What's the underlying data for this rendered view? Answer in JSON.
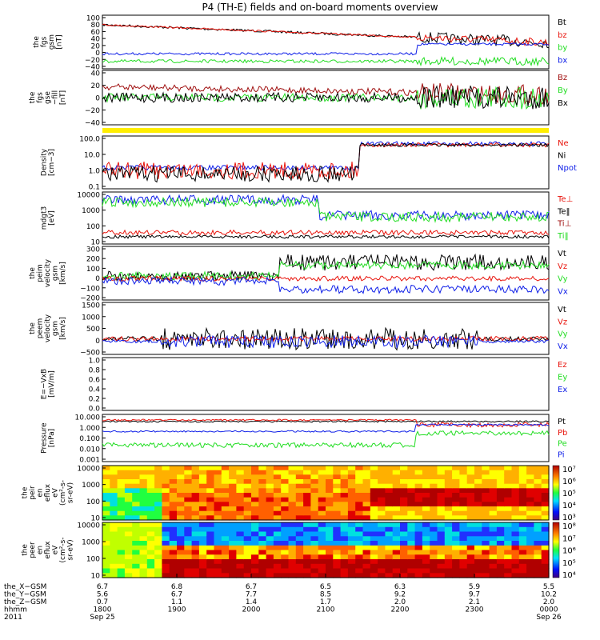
{
  "title": "P4 (TH-E) fields and on-board moments overview",
  "year": "2011",
  "colors": {
    "black": "#000000",
    "red": "#e8140c",
    "green": "#22dd22",
    "blue": "#1020e8",
    "darkred": "#a01010",
    "yellow": "#ffee00"
  },
  "panels": [
    {
      "id": "fgs-gsm",
      "ylabel": [
        "the",
        "fgs",
        "gsm",
        "[nT]"
      ],
      "ticks": [
        "100",
        "80",
        "60",
        "40",
        "20",
        "0",
        "−20",
        "−40"
      ],
      "legend": [
        {
          "t": "Bt",
          "c": "black"
        },
        {
          "t": "bz",
          "c": "red"
        },
        {
          "t": "by",
          "c": "green"
        },
        {
          "t": "bx",
          "c": "blue"
        }
      ]
    },
    {
      "id": "fgs-gse",
      "ylabel": [
        "the",
        "fgs",
        "gse",
        "−fill",
        "[nT]"
      ],
      "ticks": [
        "40",
        "20",
        "0",
        "−20",
        "−40"
      ],
      "legend": [
        {
          "t": "Bz",
          "c": "darkred"
        },
        {
          "t": "By",
          "c": "green"
        },
        {
          "t": "Bx",
          "c": "black"
        }
      ]
    },
    {
      "id": "density",
      "ylabel": [
        "Density",
        "[cm−3]"
      ],
      "ticks": [
        "100.0",
        "10.0",
        "1.0",
        "0.1"
      ],
      "legend": [
        {
          "t": "Ne",
          "c": "red"
        },
        {
          "t": "Ni",
          "c": "black"
        },
        {
          "t": "Npot",
          "c": "blue"
        }
      ]
    },
    {
      "id": "temperature",
      "ylabel": [
        "mdgt3",
        "[eV]"
      ],
      "ticks": [
        "10000",
        "1000",
        "100",
        "10"
      ],
      "legend": [
        {
          "t": "Te⊥",
          "c": "red"
        },
        {
          "t": "Te‖",
          "c": "black"
        },
        {
          "t": "Ti⊥",
          "c": "darkred"
        },
        {
          "t": "Ti‖",
          "c": "green"
        }
      ]
    },
    {
      "id": "peim-velocity",
      "ylabel": [
        "the",
        "peim",
        "velocity",
        "gsm",
        "[km/s]"
      ],
      "ticks": [
        "300",
        "200",
        "100",
        "0",
        "−100",
        "−200"
      ],
      "legend": [
        {
          "t": "Vt",
          "c": "black"
        },
        {
          "t": "Vz",
          "c": "red"
        },
        {
          "t": "Vy",
          "c": "green"
        },
        {
          "t": "Vx",
          "c": "blue"
        }
      ]
    },
    {
      "id": "peem-velocity",
      "ylabel": [
        "the",
        "peem",
        "velocity",
        "gsm",
        "[km/s]"
      ],
      "ticks": [
        "1500",
        "1000",
        "500",
        "0",
        "−500"
      ],
      "legend": [
        {
          "t": "Vt",
          "c": "black"
        },
        {
          "t": "Vz",
          "c": "red"
        },
        {
          "t": "Vy",
          "c": "green"
        },
        {
          "t": "Vx",
          "c": "blue"
        }
      ]
    },
    {
      "id": "exb",
      "ylabel": [
        "E=−VxB",
        "[mV/m]"
      ],
      "ticks": [
        "1.0",
        "0.8",
        "0.6",
        "0.4",
        "0.2",
        "0.0"
      ],
      "legend": [
        {
          "t": "Ez",
          "c": "red"
        },
        {
          "t": "Ey",
          "c": "green"
        },
        {
          "t": "Ex",
          "c": "blue"
        }
      ]
    },
    {
      "id": "pressure",
      "ylabel": [
        "Pressure",
        "[nPa]"
      ],
      "ticks": [
        "10.000",
        "1.000",
        "0.100",
        "0.010",
        "0.001"
      ],
      "legend": [
        {
          "t": "Pt",
          "c": "black"
        },
        {
          "t": "Pb",
          "c": "red"
        },
        {
          "t": "Pe",
          "c": "green"
        },
        {
          "t": "Pi",
          "c": "blue"
        }
      ]
    },
    {
      "id": "ion-spectrogram",
      "ylabel": [
        "the",
        "peir",
        "en",
        "eflux",
        "eV",
        "(cm²-s-",
        "sr-eV)"
      ],
      "ticks": [
        "10000",
        "1000",
        "100",
        "10"
      ],
      "legend": []
    },
    {
      "id": "electron-spectrogram",
      "ylabel": [
        "the",
        "peer",
        "en",
        "eflux",
        "eV",
        "(cm²-s-",
        "sr-eV)"
      ],
      "ticks": [
        "10000",
        "1000",
        "100",
        "10"
      ],
      "legend": []
    }
  ],
  "colorbars": [
    {
      "labels": [
        "10⁷",
        "10⁶",
        "10⁵",
        "10⁴",
        "10³"
      ]
    },
    {
      "labels": [
        "10⁸",
        "10⁷",
        "10⁶",
        "10⁵",
        "10⁴"
      ]
    }
  ],
  "xaxis": {
    "rows": [
      {
        "label": "the_X−GSM",
        "values": [
          "6.7",
          "6.8",
          "6.7",
          "6.5",
          "6.3",
          "5.9",
          "5.5"
        ]
      },
      {
        "label": "the_Y−GSM",
        "values": [
          "5.6",
          "6.7",
          "7.7",
          "8.5",
          "9.2",
          "9.7",
          "10.2"
        ]
      },
      {
        "label": "the_Z−GSM",
        "values": [
          "0.7",
          "1.1",
          "1.4",
          "1.7",
          "2.0",
          "2.1",
          "2.0"
        ]
      },
      {
        "label": "hhmm",
        "values": [
          "1800",
          "1900",
          "2000",
          "2100",
          "2200",
          "2300",
          "0000"
        ]
      }
    ],
    "dates": [
      "Sep 25",
      "Sep 26"
    ]
  }
}
